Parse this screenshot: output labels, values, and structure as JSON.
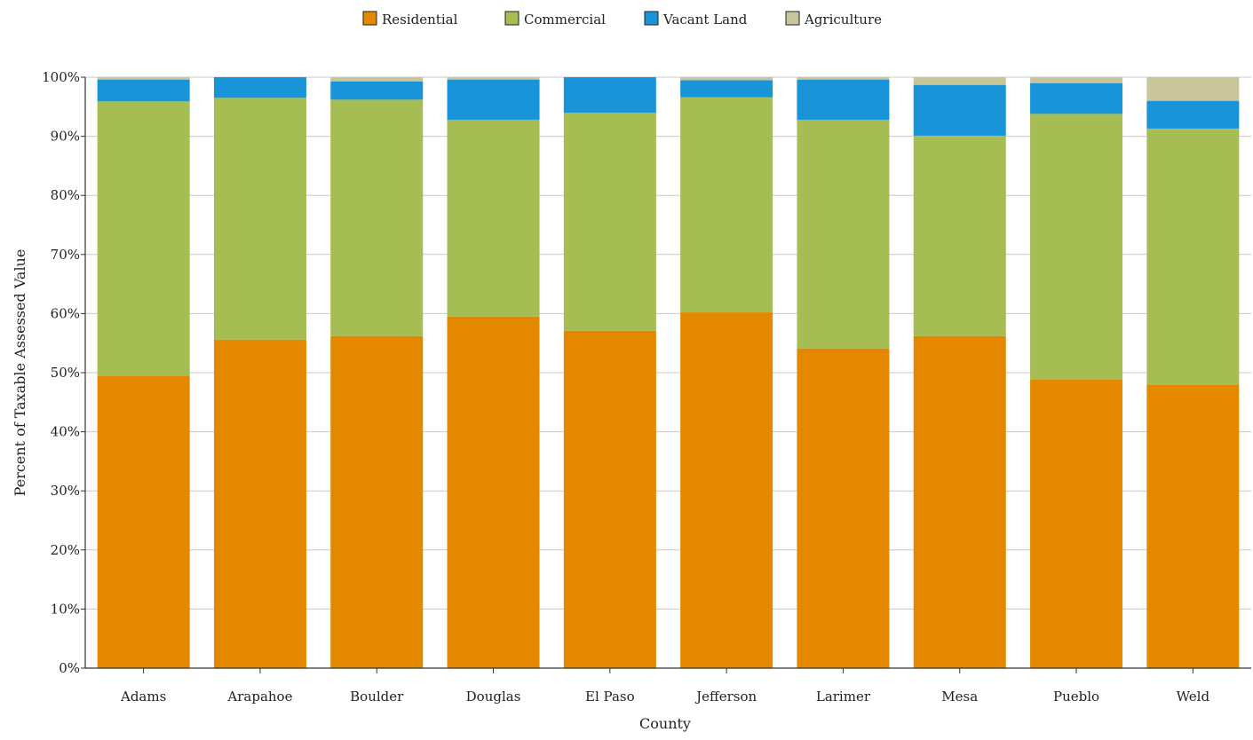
{
  "chart_data": {
    "type": "bar",
    "stacked": true,
    "normalized": true,
    "categories": [
      "Adams",
      "Arapahoe",
      "Boulder",
      "Douglas",
      "El Paso",
      "Jefferson",
      "Larimer",
      "Mesa",
      "Pueblo",
      "Weld"
    ],
    "series": [
      {
        "name": "Residential",
        "color": "#e48800",
        "values": [
          49.5,
          55.6,
          56.2,
          59.5,
          57.1,
          60.2,
          54.1,
          56.2,
          48.8,
          47.9
        ]
      },
      {
        "name": "Commercial",
        "color": "#a5bd52",
        "values": [
          46.4,
          40.9,
          40.0,
          33.3,
          36.9,
          36.4,
          38.7,
          33.9,
          45.0,
          43.4
        ]
      },
      {
        "name": "Vacant Land",
        "color": "#1a94d9",
        "values": [
          3.7,
          3.5,
          3.1,
          6.8,
          6.0,
          2.9,
          6.8,
          8.6,
          5.2,
          4.7
        ]
      },
      {
        "name": "Agriculture",
        "color": "#c9c59a",
        "values": [
          0.4,
          0.0,
          0.7,
          0.4,
          0.0,
          0.5,
          0.4,
          1.3,
          1.0,
          4.0
        ]
      }
    ],
    "xlabel": "County",
    "ylabel": "Percent of Taxable Assessed Value",
    "ylim": [
      0,
      100
    ],
    "yticks": [
      "0%",
      "10%",
      "20%",
      "30%",
      "40%",
      "50%",
      "60%",
      "70%",
      "80%",
      "90%",
      "100%"
    ],
    "grid": true,
    "legend_position": "top-center"
  }
}
